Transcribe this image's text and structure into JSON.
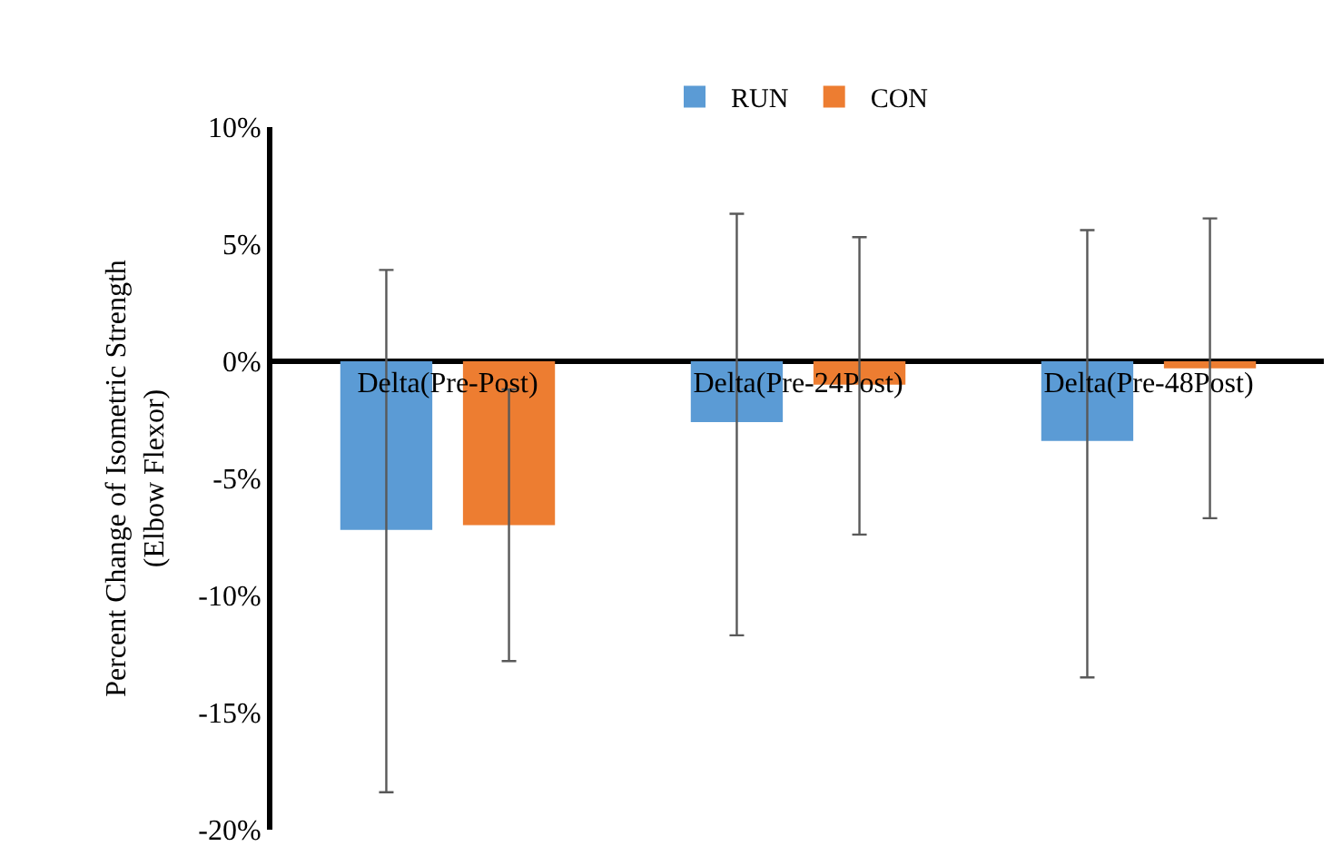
{
  "chart_data": {
    "type": "bar",
    "ylabel": "Percent Change of Isometric Strength\n(Elbow Flexor)",
    "categories": [
      "Delta(Pre-Post)",
      "Delta(Pre-24Post)",
      "Delta(Pre-48Post)"
    ],
    "series": [
      {
        "name": "RUN",
        "color": "#5b9bd5",
        "values": [
          -7.2,
          -2.6,
          -3.4
        ],
        "errors": [
          [
            -18.4,
            3.9
          ],
          [
            -11.7,
            6.3
          ],
          [
            -13.5,
            5.6
          ]
        ]
      },
      {
        "name": "CON",
        "color": "#ed7d31",
        "values": [
          -7.0,
          -1.0,
          -0.3
        ],
        "errors": [
          [
            -12.8,
            -1.2
          ],
          [
            -7.4,
            5.3
          ],
          [
            -6.7,
            6.1
          ]
        ]
      }
    ],
    "ylim": [
      -20,
      10
    ],
    "yticks": [
      {
        "value": -20,
        "label": "-20%"
      },
      {
        "value": -15,
        "label": "-15%"
      },
      {
        "value": -10,
        "label": "-10%"
      },
      {
        "value": -5,
        "label": "-5%"
      },
      {
        "value": 0,
        "label": "0%"
      },
      {
        "value": 5,
        "label": "5%"
      },
      {
        "value": 10,
        "label": "10%"
      }
    ],
    "legend": "top"
  }
}
